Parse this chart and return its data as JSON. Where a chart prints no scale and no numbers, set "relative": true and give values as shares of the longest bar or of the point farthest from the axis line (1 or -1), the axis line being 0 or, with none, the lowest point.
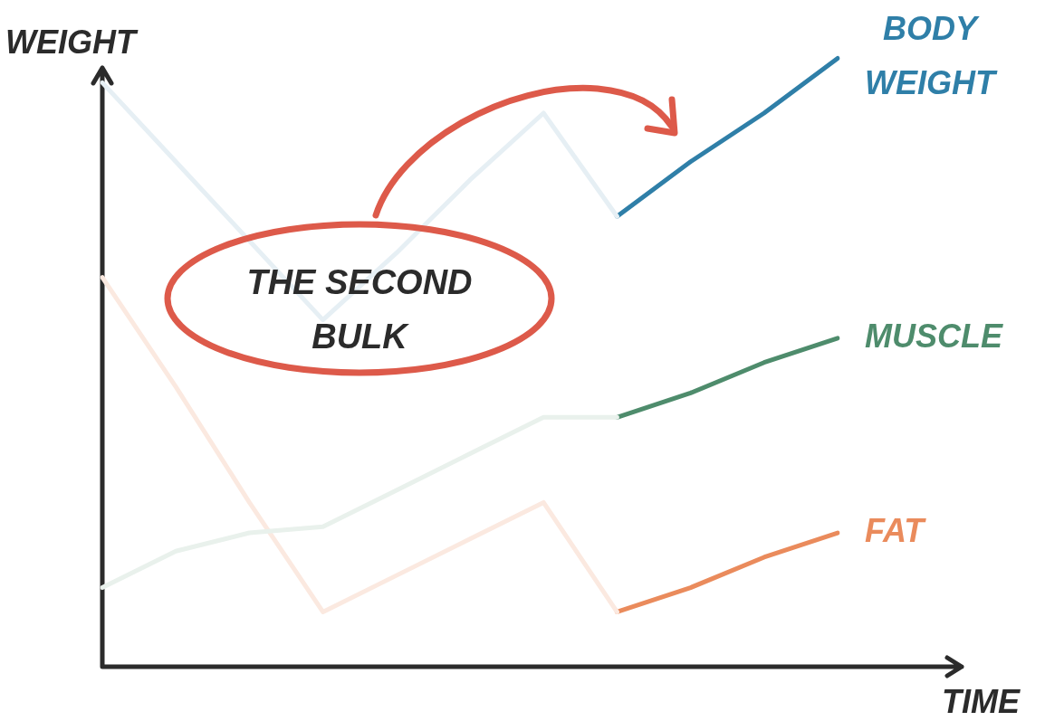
{
  "chart_data": {
    "type": "line",
    "relative": true,
    "xlabel": "TIME",
    "ylabel": "WEIGHT",
    "tick_labels": false,
    "grid": false,
    "legend": false,
    "marker": "none",
    "line_style": "solid",
    "annotations": [
      "THE SECOND BULK"
    ],
    "categories": [
      null,
      null,
      null,
      null,
      null,
      null,
      null,
      null,
      null,
      null,
      null
    ],
    "series": [
      {
        "color": "#e6eff4",
        "values": [
          0.96,
          0.83,
          0.7,
          0.57,
          0.68,
          0.8,
          0.91,
          0.74,
          null,
          null,
          null
        ]
      },
      {
        "color": "#e9f1ec",
        "values": [
          0.13,
          0.19,
          0.22,
          0.23,
          0.29,
          0.35,
          0.41,
          0.41,
          null,
          null,
          null
        ]
      },
      {
        "color": "#fbe9e0",
        "values": [
          0.64,
          0.46,
          0.27,
          0.09,
          0.15,
          0.21,
          0.27,
          0.09,
          null,
          null,
          null
        ]
      },
      {
        "name": "BODY WEIGHT",
        "color": "#2f7fa8",
        "values": [
          null,
          null,
          null,
          null,
          null,
          null,
          null,
          0.74,
          0.83,
          0.91,
          1.0
        ]
      },
      {
        "name": "MUSCLE",
        "color": "#4e8c6c",
        "values": [
          null,
          null,
          null,
          null,
          null,
          null,
          null,
          0.41,
          0.45,
          0.5,
          0.54
        ]
      },
      {
        "name": "FAT",
        "color": "#ea8b5c",
        "values": [
          null,
          null,
          null,
          null,
          null,
          null,
          null,
          0.09,
          0.13,
          0.18,
          0.22
        ]
      }
    ]
  }
}
